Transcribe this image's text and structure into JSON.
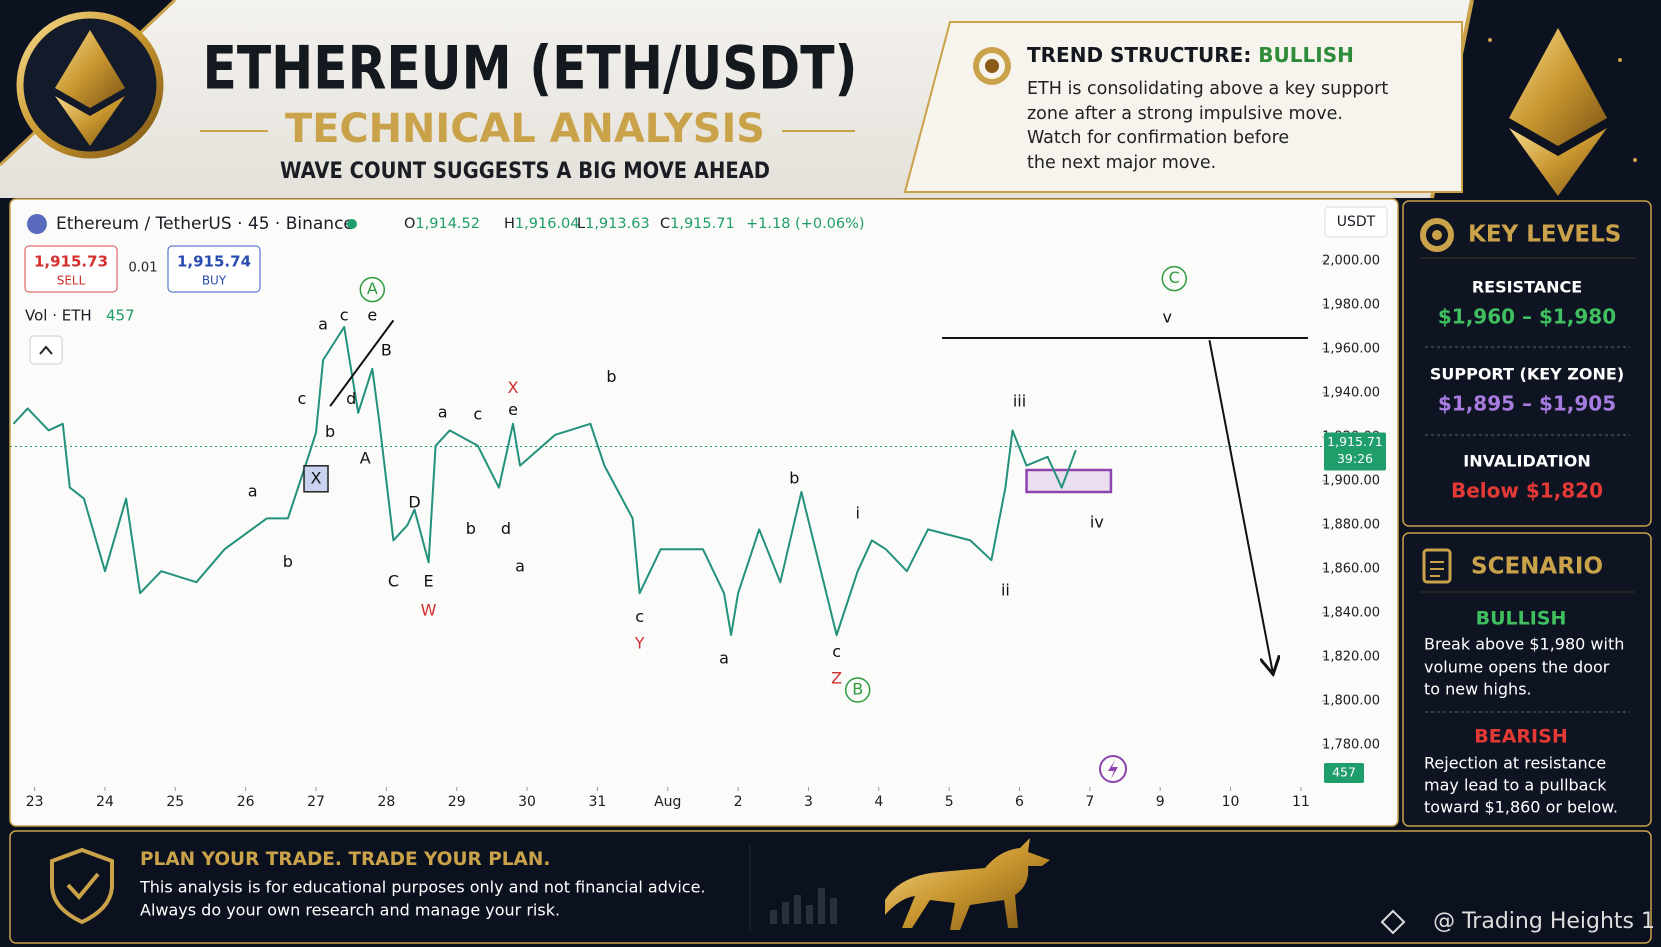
{
  "header": {
    "title": "ETHEREUM (ETH/USDT)",
    "subtitle": "TECHNICAL ANALYSIS",
    "tagline": "WAVE COUNT SUGGESTS A BIG MOVE AHEAD"
  },
  "trend_box": {
    "label": "TREND STRUCTURE: ",
    "status": "BULLISH",
    "lines": [
      "ETH is consolidating above a key support",
      "zone after a strong impulsive move.",
      "Watch for confirmation before",
      "the next major move."
    ]
  },
  "chart_data": {
    "type": "line",
    "symbol": "Ethereum / TetherUS · 45 · Binance",
    "ohlc": [
      {
        "label": "O",
        "value": "1,914.52"
      },
      {
        "label": "H",
        "value": "1,916.04"
      },
      {
        "label": "L",
        "value": "1,913.63"
      },
      {
        "label": "C",
        "value": "1,915.71"
      }
    ],
    "change": "+1.18 (+0.06%)",
    "sell": {
      "price": "1,915.73",
      "label": "SELL"
    },
    "spread": "0.01",
    "buy": {
      "price": "1,915.74",
      "label": "BUY"
    },
    "volume": {
      "label": "Vol · ETH",
      "value": 457
    },
    "currency": "USDT",
    "x": [
      -0.3,
      -0.1,
      0.2,
      0.4,
      0.5,
      0.7,
      1.0,
      1.3,
      1.5,
      1.8,
      2.3,
      2.7,
      3.3,
      3.6,
      3.9,
      4.0,
      4.1,
      4.4,
      4.6,
      4.8,
      4.9,
      5.1,
      5.3,
      5.4,
      5.6,
      5.7,
      5.9,
      6.3,
      6.6,
      6.8,
      6.9,
      7.4,
      7.9,
      8.1,
      8.5,
      8.6,
      8.9,
      9.5,
      9.8,
      9.9,
      10.0,
      10.3,
      10.6,
      10.9,
      11.1,
      11.4,
      11.7,
      11.9,
      12.1,
      12.4,
      12.7,
      13.3,
      13.6,
      13.8,
      13.9,
      14.1,
      14.4,
      14.6,
      14.8
    ],
    "series": [
      {
        "color": "#23917c",
        "values": [
          1926,
          1933,
          1923,
          1926,
          1897,
          1892,
          1859,
          1892,
          1849,
          1859,
          1854,
          1869,
          1883,
          1883,
          1912,
          1922,
          1955,
          1970,
          1931,
          1951,
          1927,
          1873,
          1880,
          1887,
          1863,
          1916,
          1923,
          1916,
          1897,
          1926,
          1907,
          1921,
          1926,
          1907,
          1883,
          1849,
          1869,
          1869,
          1849,
          1830,
          1849,
          1878,
          1854,
          1895,
          1869,
          1830,
          1859,
          1873,
          1869,
          1859,
          1878,
          1873,
          1864,
          1897,
          1923,
          1907,
          1911,
          1897,
          1914
        ]
      }
    ],
    "xlim": [
      -0.35,
      18.3
    ],
    "ylim": [
      1770,
      2010
    ],
    "xticks": [
      {
        "value": 0,
        "label": "23"
      },
      {
        "value": 1,
        "label": "24"
      },
      {
        "value": 2,
        "label": "25"
      },
      {
        "value": 3,
        "label": "26"
      },
      {
        "value": 4,
        "label": "27"
      },
      {
        "value": 5,
        "label": "28"
      },
      {
        "value": 6,
        "label": "29"
      },
      {
        "value": 7,
        "label": "30"
      },
      {
        "value": 8,
        "label": "31"
      },
      {
        "value": 9,
        "label": "Aug"
      },
      {
        "value": 10,
        "label": "2"
      },
      {
        "value": 11,
        "label": "3"
      },
      {
        "value": 12,
        "label": "4"
      },
      {
        "value": 13,
        "label": "5"
      },
      {
        "value": 14,
        "label": "6"
      },
      {
        "value": 15,
        "label": "7"
      },
      {
        "value": 16,
        "label": "9"
      },
      {
        "value": 17,
        "label": "10"
      },
      {
        "value": 18,
        "label": "11"
      }
    ],
    "yticks": [
      {
        "value": 1780,
        "label": "1,780.00"
      },
      {
        "value": 1800,
        "label": "1,800.00"
      },
      {
        "value": 1820,
        "label": "1,820.00"
      },
      {
        "value": 1840,
        "label": "1,840.00"
      },
      {
        "value": 1860,
        "label": "1,860.00"
      },
      {
        "value": 1880,
        "label": "1,880.00"
      },
      {
        "value": 1900,
        "label": "1,900.00"
      },
      {
        "value": 1920,
        "label": "1,920.00"
      },
      {
        "value": 1940,
        "label": "1,940.00"
      },
      {
        "value": 1960,
        "label": "1,960.00"
      },
      {
        "value": 1980,
        "label": "1,980.00"
      },
      {
        "value": 2000,
        "label": "2,000.00"
      }
    ],
    "grid": false,
    "last_price": {
      "value": 1915.71,
      "label": "1,915.71",
      "countdown": "39:26",
      "color": "#1f9d6b"
    },
    "support_zone": {
      "x": [
        14.1,
        15.3
      ],
      "y": [
        1895,
        1905
      ],
      "color": "#8e44ad"
    },
    "trend_lines": [
      {
        "x": [
          12.9,
          18.1
        ],
        "y": [
          1965,
          1965
        ],
        "color": "#111111",
        "arrow": false
      },
      {
        "x": [
          16.7,
          17.6
        ],
        "y": [
          1964,
          1813
        ],
        "color": "#111111",
        "arrow": true
      },
      {
        "x": [
          4.2,
          5.1
        ],
        "y": [
          1934,
          1973
        ],
        "color": "#111111",
        "arrow": false
      }
    ],
    "annotations": [
      {
        "text": "A",
        "x": 4.8,
        "y": 1987,
        "color": "#2e9b3e",
        "circled": true
      },
      {
        "text": "a",
        "x": 4.1,
        "y": 1971
      },
      {
        "text": "c",
        "x": 4.4,
        "y": 1975
      },
      {
        "text": "e",
        "x": 4.8,
        "y": 1975
      },
      {
        "text": "B",
        "x": 5.0,
        "y": 1959
      },
      {
        "text": "c",
        "x": 3.8,
        "y": 1937
      },
      {
        "text": "d",
        "x": 4.5,
        "y": 1937
      },
      {
        "text": "b",
        "x": 4.2,
        "y": 1922
      },
      {
        "text": "A",
        "x": 4.7,
        "y": 1910
      },
      {
        "text": "X",
        "x": 4.0,
        "y": 1901,
        "boxed": true
      },
      {
        "text": "a",
        "x": 3.1,
        "y": 1895
      },
      {
        "text": "b",
        "x": 3.6,
        "y": 1863
      },
      {
        "text": "D",
        "x": 5.4,
        "y": 1890
      },
      {
        "text": "C",
        "x": 5.1,
        "y": 1854
      },
      {
        "text": "E",
        "x": 5.6,
        "y": 1854
      },
      {
        "text": "W",
        "x": 5.6,
        "y": 1841,
        "color": "#d32f2f"
      },
      {
        "text": "a",
        "x": 5.8,
        "y": 1931
      },
      {
        "text": "c",
        "x": 6.3,
        "y": 1930
      },
      {
        "text": "X",
        "x": 6.8,
        "y": 1942,
        "color": "#d32f2f"
      },
      {
        "text": "e",
        "x": 6.8,
        "y": 1932
      },
      {
        "text": "b",
        "x": 6.2,
        "y": 1878
      },
      {
        "text": "d",
        "x": 6.7,
        "y": 1878
      },
      {
        "text": "a",
        "x": 6.9,
        "y": 1861
      },
      {
        "text": "b",
        "x": 8.2,
        "y": 1947
      },
      {
        "text": "c",
        "x": 8.6,
        "y": 1838
      },
      {
        "text": "Y",
        "x": 8.6,
        "y": 1826,
        "color": "#d32f2f"
      },
      {
        "text": "a",
        "x": 9.8,
        "y": 1819
      },
      {
        "text": "b",
        "x": 10.8,
        "y": 1901
      },
      {
        "text": "c",
        "x": 11.4,
        "y": 1822
      },
      {
        "text": "Z",
        "x": 11.4,
        "y": 1810,
        "color": "#d32f2f"
      },
      {
        "text": "B",
        "x": 11.7,
        "y": 1805,
        "color": "#2e9b3e",
        "circled": true
      },
      {
        "text": "i",
        "x": 11.7,
        "y": 1885
      },
      {
        "text": "iii",
        "x": 14.0,
        "y": 1936
      },
      {
        "text": "ii",
        "x": 13.8,
        "y": 1850
      },
      {
        "text": "iv",
        "x": 15.1,
        "y": 1881
      },
      {
        "text": "v",
        "x": 16.1,
        "y": 1974
      },
      {
        "text": "C",
        "x": 16.2,
        "y": 1992,
        "color": "#2e9b3e",
        "circled": true
      }
    ]
  },
  "key_levels": {
    "title": "KEY LEVELS",
    "items": [
      {
        "label": "RESISTANCE",
        "value": "$1,960 – $1,980"
      },
      {
        "label": "SUPPORT (KEY ZONE)",
        "value": "$1,895 – $1,905"
      },
      {
        "label": "INVALIDATION",
        "value": "Below $1,820"
      }
    ]
  },
  "scenario": {
    "title": "SCENARIO",
    "bullish": {
      "label": "BULLISH",
      "lines": [
        "Break above $1,980 with",
        "volume opens the door",
        "to new highs."
      ]
    },
    "bearish": {
      "label": "BEARISH",
      "lines": [
        "Rejection at resistance",
        "may lead to a pullback",
        "toward $1,860 or below."
      ]
    }
  },
  "footer": {
    "headline": "PLAN YOUR TRADE. TRADE YOUR PLAN.",
    "lines": [
      "This analysis is for educational purposes only and not financial advice.",
      "Always do your own research and manage your risk."
    ],
    "watermark": "@ Trading Heights 1"
  }
}
